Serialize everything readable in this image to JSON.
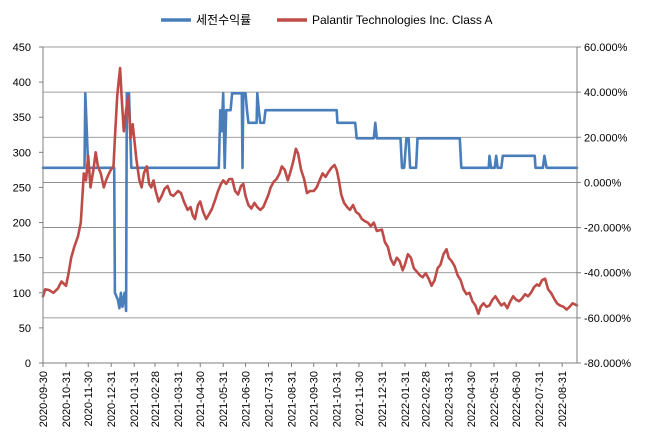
{
  "chart_data": {
    "type": "line",
    "title": "",
    "xlabel": "",
    "ylabel": "",
    "y2label": "",
    "legend_position": "top",
    "grid": true,
    "colors": {
      "series_return": "#4a7ebb",
      "series_pltr": "#be4b48",
      "grid": "#7f7f7f",
      "axis": "#7f7f7f"
    },
    "x_tick_labels": [
      "2020-09-30",
      "2020-10-31",
      "2020-11-30",
      "2020-12-31",
      "2021-01-31",
      "2021-02-28",
      "2021-03-31",
      "2021-04-30",
      "2021-05-31",
      "2021-06-30",
      "2021-07-31",
      "2021-08-31",
      "2021-09-30",
      "2021-10-31",
      "2021-11-30",
      "2021-12-31",
      "2022-01-31",
      "2022-02-28",
      "2022-03-31",
      "2022-04-30",
      "2022-05-31",
      "2022-06-30",
      "2022-07-31",
      "2022-08-31"
    ],
    "xlim": [
      "2020-09-30",
      "2022-09-20"
    ],
    "y_left": {
      "ticks": [
        "0",
        "50",
        "100",
        "150",
        "200",
        "250",
        "300",
        "350",
        "400",
        "450"
      ],
      "ylim": [
        0,
        450
      ]
    },
    "y_right": {
      "ticks": [
        "-80.000%",
        "-60.000%",
        "-40.000%",
        "-20.000%",
        "0.000%",
        "20.000%",
        "40.000%",
        "60.000%"
      ],
      "ylim": [
        -80,
        60
      ],
      "unit": "%"
    },
    "series": [
      {
        "name": "세전수익률",
        "axis": "left",
        "points": [
          [
            "2020-09-30",
            278
          ],
          [
            "2020-11-25",
            278
          ],
          [
            "2020-11-26",
            384
          ],
          [
            "2020-11-28",
            330
          ],
          [
            "2020-11-30",
            278
          ],
          [
            "2021-01-04",
            278
          ],
          [
            "2021-01-05",
            100
          ],
          [
            "2021-01-09",
            90
          ],
          [
            "2021-01-11",
            78
          ],
          [
            "2021-01-13",
            100
          ],
          [
            "2021-01-15",
            80
          ],
          [
            "2021-01-18",
            100
          ],
          [
            "2021-01-20",
            74
          ],
          [
            "2021-01-21",
            384
          ],
          [
            "2021-01-24",
            384
          ],
          [
            "2021-01-27",
            278
          ],
          [
            "2021-05-25",
            278
          ],
          [
            "2021-05-27",
            360
          ],
          [
            "2021-05-29",
            330
          ],
          [
            "2021-05-31",
            384
          ],
          [
            "2021-06-02",
            278
          ],
          [
            "2021-06-04",
            360
          ],
          [
            "2021-06-10",
            360
          ],
          [
            "2021-06-12",
            384
          ],
          [
            "2021-06-25",
            384
          ],
          [
            "2021-06-26",
            278
          ],
          [
            "2021-06-27",
            384
          ],
          [
            "2021-06-30",
            384
          ],
          [
            "2021-07-02",
            360
          ],
          [
            "2021-07-04",
            342
          ],
          [
            "2021-07-15",
            342
          ],
          [
            "2021-07-16",
            384
          ],
          [
            "2021-07-18",
            360
          ],
          [
            "2021-07-20",
            342
          ],
          [
            "2021-07-25",
            342
          ],
          [
            "2021-07-27",
            360
          ],
          [
            "2021-10-31",
            360
          ],
          [
            "2021-11-01",
            342
          ],
          [
            "2021-11-25",
            342
          ],
          [
            "2021-11-27",
            320
          ],
          [
            "2021-12-20",
            320
          ],
          [
            "2021-12-22",
            342
          ],
          [
            "2021-12-24",
            320
          ],
          [
            "2022-01-25",
            320
          ],
          [
            "2022-01-27",
            278
          ],
          [
            "2022-01-30",
            278
          ],
          [
            "2022-02-02",
            320
          ],
          [
            "2022-02-05",
            320
          ],
          [
            "2022-02-07",
            278
          ],
          [
            "2022-02-15",
            278
          ],
          [
            "2022-02-17",
            320
          ],
          [
            "2022-04-15",
            320
          ],
          [
            "2022-04-17",
            278
          ],
          [
            "2022-05-24",
            278
          ],
          [
            "2022-05-25",
            295
          ],
          [
            "2022-05-27",
            278
          ],
          [
            "2022-06-01",
            278
          ],
          [
            "2022-06-03",
            295
          ],
          [
            "2022-06-05",
            278
          ],
          [
            "2022-06-10",
            278
          ],
          [
            "2022-06-12",
            295
          ],
          [
            "2022-07-25",
            295
          ],
          [
            "2022-07-26",
            278
          ],
          [
            "2022-08-05",
            278
          ],
          [
            "2022-08-07",
            295
          ],
          [
            "2022-08-10",
            278
          ],
          [
            "2022-09-20",
            278
          ]
        ]
      },
      {
        "name": "Palantir Technologies Inc. Class A",
        "axis": "left",
        "points": [
          [
            "2020-09-30",
            95
          ],
          [
            "2020-10-03",
            105
          ],
          [
            "2020-10-08",
            104
          ],
          [
            "2020-10-14",
            100
          ],
          [
            "2020-10-20",
            106
          ],
          [
            "2020-10-25",
            116
          ],
          [
            "2020-10-31",
            110
          ],
          [
            "2020-11-03",
            125
          ],
          [
            "2020-11-07",
            150
          ],
          [
            "2020-11-11",
            165
          ],
          [
            "2020-11-16",
            180
          ],
          [
            "2020-11-20",
            200
          ],
          [
            "2020-11-24",
            270
          ],
          [
            "2020-11-27",
            260
          ],
          [
            "2020-11-30",
            295
          ],
          [
            "2020-12-03",
            250
          ],
          [
            "2020-12-07",
            275
          ],
          [
            "2020-12-10",
            300
          ],
          [
            "2020-12-13",
            280
          ],
          [
            "2020-12-17",
            270
          ],
          [
            "2020-12-21",
            250
          ],
          [
            "2020-12-24",
            260
          ],
          [
            "2020-12-28",
            270
          ],
          [
            "2020-12-31",
            276
          ],
          [
            "2021-01-03",
            280
          ],
          [
            "2021-01-05",
            320
          ],
          [
            "2021-01-08",
            380
          ],
          [
            "2021-01-10",
            400
          ],
          [
            "2021-01-12",
            420
          ],
          [
            "2021-01-14",
            380
          ],
          [
            "2021-01-17",
            330
          ],
          [
            "2021-01-20",
            360
          ],
          [
            "2021-01-23",
            380
          ],
          [
            "2021-01-26",
            320
          ],
          [
            "2021-01-29",
            340
          ],
          [
            "2021-02-03",
            290
          ],
          [
            "2021-02-07",
            260
          ],
          [
            "2021-02-10",
            250
          ],
          [
            "2021-02-13",
            270
          ],
          [
            "2021-02-17",
            280
          ],
          [
            "2021-02-20",
            255
          ],
          [
            "2021-02-23",
            250
          ],
          [
            "2021-02-26",
            260
          ],
          [
            "2021-03-01",
            245
          ],
          [
            "2021-03-05",
            230
          ],
          [
            "2021-03-09",
            238
          ],
          [
            "2021-03-13",
            248
          ],
          [
            "2021-03-17",
            252
          ],
          [
            "2021-03-21",
            240
          ],
          [
            "2021-03-25",
            238
          ],
          [
            "2021-03-31",
            245
          ],
          [
            "2021-04-04",
            242
          ],
          [
            "2021-04-08",
            230
          ],
          [
            "2021-04-13",
            218
          ],
          [
            "2021-04-17",
            222
          ],
          [
            "2021-04-20",
            210
          ],
          [
            "2021-04-23",
            205
          ],
          [
            "2021-04-27",
            225
          ],
          [
            "2021-04-30",
            230
          ],
          [
            "2021-05-04",
            215
          ],
          [
            "2021-05-08",
            205
          ],
          [
            "2021-05-12",
            212
          ],
          [
            "2021-05-16",
            220
          ],
          [
            "2021-05-20",
            232
          ],
          [
            "2021-05-24",
            245
          ],
          [
            "2021-05-28",
            255
          ],
          [
            "2021-05-31",
            260
          ],
          [
            "2021-06-04",
            255
          ],
          [
            "2021-06-08",
            262
          ],
          [
            "2021-06-12",
            262
          ],
          [
            "2021-06-16",
            245
          ],
          [
            "2021-06-20",
            240
          ],
          [
            "2021-06-24",
            252
          ],
          [
            "2021-06-27",
            255
          ],
          [
            "2021-06-30",
            238
          ],
          [
            "2021-07-04",
            225
          ],
          [
            "2021-07-08",
            220
          ],
          [
            "2021-07-12",
            228
          ],
          [
            "2021-07-16",
            222
          ],
          [
            "2021-07-20",
            218
          ],
          [
            "2021-07-24",
            222
          ],
          [
            "2021-07-28",
            232
          ],
          [
            "2021-07-31",
            240
          ],
          [
            "2021-08-03",
            250
          ],
          [
            "2021-08-07",
            258
          ],
          [
            "2021-08-11",
            262
          ],
          [
            "2021-08-15",
            270
          ],
          [
            "2021-08-18",
            280
          ],
          [
            "2021-08-22",
            275
          ],
          [
            "2021-08-26",
            260
          ],
          [
            "2021-08-29",
            270
          ],
          [
            "2021-09-02",
            285
          ],
          [
            "2021-09-06",
            305
          ],
          [
            "2021-09-09",
            298
          ],
          [
            "2021-09-13",
            275
          ],
          [
            "2021-09-17",
            262
          ],
          [
            "2021-09-21",
            242
          ],
          [
            "2021-09-25",
            245
          ],
          [
            "2021-09-30",
            245
          ],
          [
            "2021-10-04",
            250
          ],
          [
            "2021-10-08",
            260
          ],
          [
            "2021-10-12",
            270
          ],
          [
            "2021-10-16",
            265
          ],
          [
            "2021-10-20",
            272
          ],
          [
            "2021-10-24",
            278
          ],
          [
            "2021-10-28",
            282
          ],
          [
            "2021-10-31",
            275
          ],
          [
            "2021-11-03",
            260
          ],
          [
            "2021-11-06",
            240
          ],
          [
            "2021-11-10",
            228
          ],
          [
            "2021-11-14",
            222
          ],
          [
            "2021-11-18",
            218
          ],
          [
            "2021-11-22",
            225
          ],
          [
            "2021-11-26",
            215
          ],
          [
            "2021-11-30",
            212
          ],
          [
            "2021-12-04",
            205
          ],
          [
            "2021-12-08",
            202
          ],
          [
            "2021-12-12",
            200
          ],
          [
            "2021-12-16",
            195
          ],
          [
            "2021-12-20",
            200
          ],
          [
            "2021-12-24",
            188
          ],
          [
            "2021-12-31",
            190
          ],
          [
            "2022-01-04",
            172
          ],
          [
            "2022-01-08",
            165
          ],
          [
            "2022-01-12",
            148
          ],
          [
            "2022-01-16",
            140
          ],
          [
            "2022-01-20",
            150
          ],
          [
            "2022-01-24",
            145
          ],
          [
            "2022-01-28",
            132
          ],
          [
            "2022-01-31",
            140
          ],
          [
            "2022-02-04",
            155
          ],
          [
            "2022-02-08",
            150
          ],
          [
            "2022-02-12",
            135
          ],
          [
            "2022-02-16",
            130
          ],
          [
            "2022-02-20",
            125
          ],
          [
            "2022-02-24",
            122
          ],
          [
            "2022-02-28",
            128
          ],
          [
            "2022-03-04",
            120
          ],
          [
            "2022-03-08",
            110
          ],
          [
            "2022-03-12",
            118
          ],
          [
            "2022-03-16",
            135
          ],
          [
            "2022-03-20",
            140
          ],
          [
            "2022-03-24",
            155
          ],
          [
            "2022-03-28",
            162
          ],
          [
            "2022-03-31",
            150
          ],
          [
            "2022-04-04",
            145
          ],
          [
            "2022-04-08",
            138
          ],
          [
            "2022-04-12",
            125
          ],
          [
            "2022-04-16",
            118
          ],
          [
            "2022-04-20",
            105
          ],
          [
            "2022-04-24",
            98
          ],
          [
            "2022-04-28",
            100
          ],
          [
            "2022-05-02",
            88
          ],
          [
            "2022-05-06",
            82
          ],
          [
            "2022-05-10",
            70
          ],
          [
            "2022-05-13",
            80
          ],
          [
            "2022-05-17",
            85
          ],
          [
            "2022-05-21",
            80
          ],
          [
            "2022-05-25",
            82
          ],
          [
            "2022-05-29",
            90
          ],
          [
            "2022-06-02",
            95
          ],
          [
            "2022-06-06",
            88
          ],
          [
            "2022-06-10",
            82
          ],
          [
            "2022-06-14",
            85
          ],
          [
            "2022-06-18",
            78
          ],
          [
            "2022-06-22",
            88
          ],
          [
            "2022-06-26",
            95
          ],
          [
            "2022-06-30",
            90
          ],
          [
            "2022-07-04",
            88
          ],
          [
            "2022-07-08",
            92
          ],
          [
            "2022-07-12",
            98
          ],
          [
            "2022-07-16",
            95
          ],
          [
            "2022-07-20",
            100
          ],
          [
            "2022-07-24",
            108
          ],
          [
            "2022-07-28",
            112
          ],
          [
            "2022-07-31",
            110
          ],
          [
            "2022-08-04",
            118
          ],
          [
            "2022-08-08",
            120
          ],
          [
            "2022-08-12",
            105
          ],
          [
            "2022-08-16",
            100
          ],
          [
            "2022-08-20",
            92
          ],
          [
            "2022-08-24",
            85
          ],
          [
            "2022-08-28",
            82
          ],
          [
            "2022-09-02",
            80
          ],
          [
            "2022-09-06",
            76
          ],
          [
            "2022-09-10",
            80
          ],
          [
            "2022-09-14",
            85
          ],
          [
            "2022-09-20",
            82
          ]
        ]
      }
    ]
  }
}
